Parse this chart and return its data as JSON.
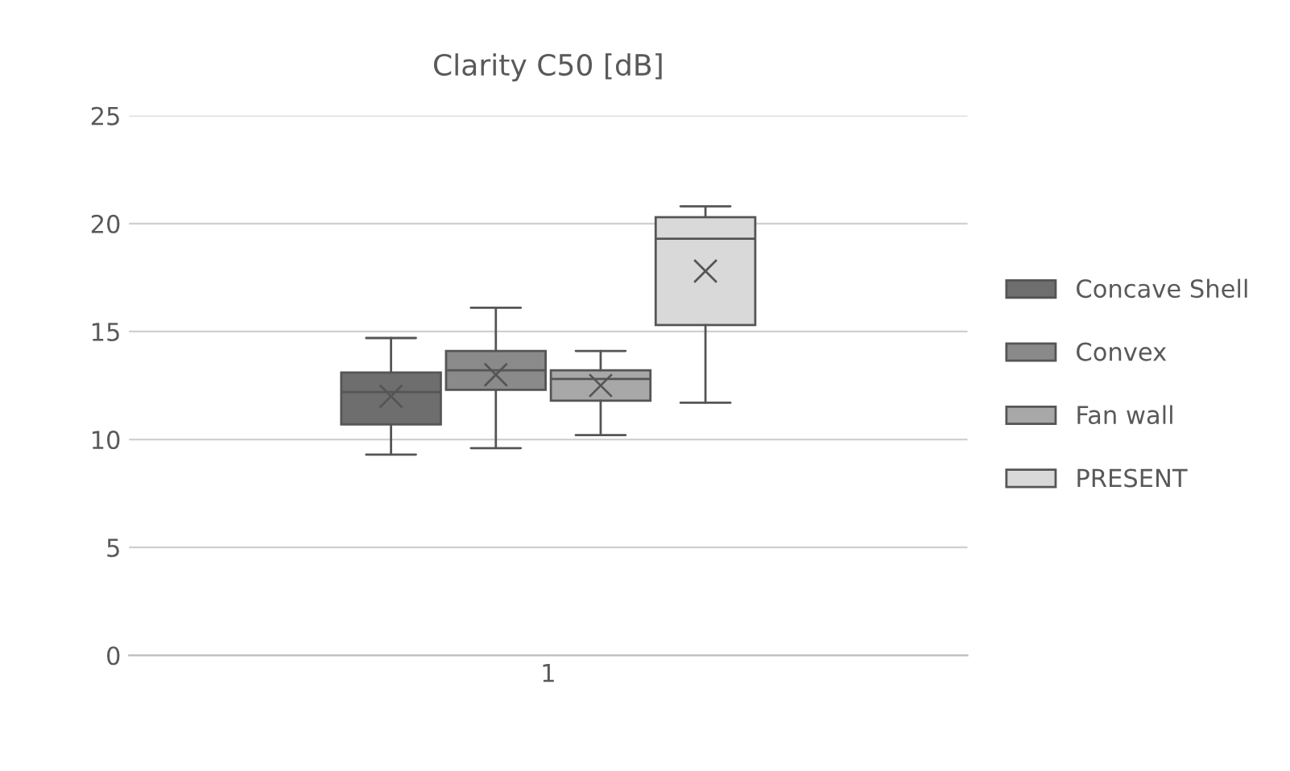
{
  "chart_data": {
    "type": "box",
    "title": "Clarity C50 [dB]",
    "categories": [
      "1"
    ],
    "series": [
      {
        "name": "Concave Shell",
        "color": "#6e6e6e",
        "boxes": [
          {
            "low": 9.3,
            "q1": 10.7,
            "median": 12.2,
            "q3": 13.1,
            "high": 14.7,
            "mean": 12.0
          }
        ]
      },
      {
        "name": "Convex",
        "color": "#8a8a8a",
        "boxes": [
          {
            "low": 9.6,
            "q1": 12.3,
            "median": 13.2,
            "q3": 14.1,
            "high": 16.1,
            "mean": 13.0
          }
        ]
      },
      {
        "name": "Fan wall",
        "color": "#a8a8a8",
        "boxes": [
          {
            "low": 10.2,
            "q1": 11.8,
            "median": 12.8,
            "q3": 13.2,
            "high": 14.1,
            "mean": 12.5
          }
        ]
      },
      {
        "name": "PRESENT",
        "color": "#d9d9d9",
        "boxes": [
          {
            "low": 11.7,
            "q1": 15.3,
            "median": 19.3,
            "q3": 20.3,
            "high": 20.8,
            "mean": 17.8
          }
        ]
      }
    ],
    "ylim": [
      0,
      25
    ],
    "yticks": [
      0,
      5,
      10,
      15,
      20,
      25
    ],
    "grid": "y",
    "legend": "right"
  }
}
